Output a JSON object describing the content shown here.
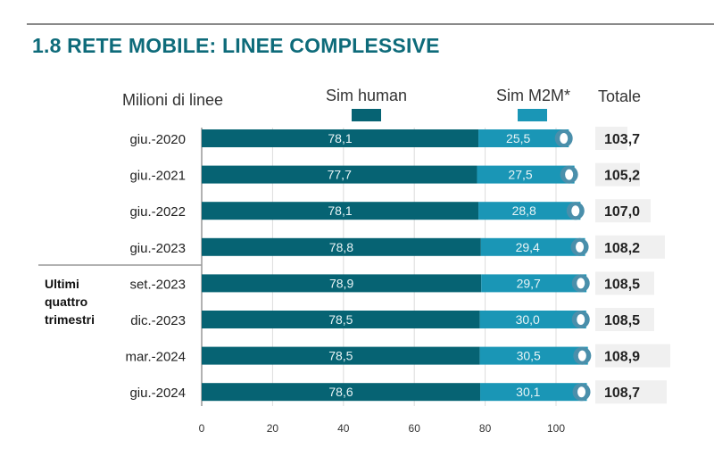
{
  "title": "1.8 RETE MOBILE: LINEE COMPLESSIVE",
  "chart_data": {
    "type": "bar",
    "orientation": "horizontal",
    "stacked": true,
    "ylabel": "Milioni di linee",
    "totals_header": "Totale",
    "group_label": "Ultimi quattro trimestri",
    "categories": [
      "giu.-2020",
      "giu.-2021",
      "giu.-2022",
      "giu.-2023",
      "set.-2023",
      "dic.-2023",
      "mar.-2024",
      "giu.-2024"
    ],
    "series": [
      {
        "name": "Sim human",
        "color": "#066373",
        "values": [
          78.1,
          77.7,
          78.1,
          78.8,
          78.9,
          78.5,
          78.5,
          78.6
        ],
        "labels": [
          "78,1",
          "77,7",
          "78,1",
          "78,8",
          "78,9",
          "78,5",
          "78,5",
          "78,6"
        ]
      },
      {
        "name": "Sim M2M*",
        "color": "#1a96b6",
        "values": [
          25.5,
          27.5,
          28.8,
          29.4,
          29.7,
          30.0,
          30.5,
          30.1
        ],
        "labels": [
          "25,5",
          "27,5",
          "28,8",
          "29,4",
          "29,7",
          "30,0",
          "30,5",
          "30,1"
        ]
      }
    ],
    "totals": [
      103.7,
      105.2,
      107.0,
      108.2,
      108.5,
      108.5,
      108.9,
      108.7
    ],
    "totals_labels": [
      "103,7",
      "105,2",
      "107,0",
      "108,2",
      "108,5",
      "108,5",
      "108,9",
      "108,7"
    ],
    "xlim": [
      0,
      110
    ],
    "xticks": [
      0,
      20,
      40,
      60,
      80,
      100
    ],
    "grid": true,
    "legend": "top"
  }
}
